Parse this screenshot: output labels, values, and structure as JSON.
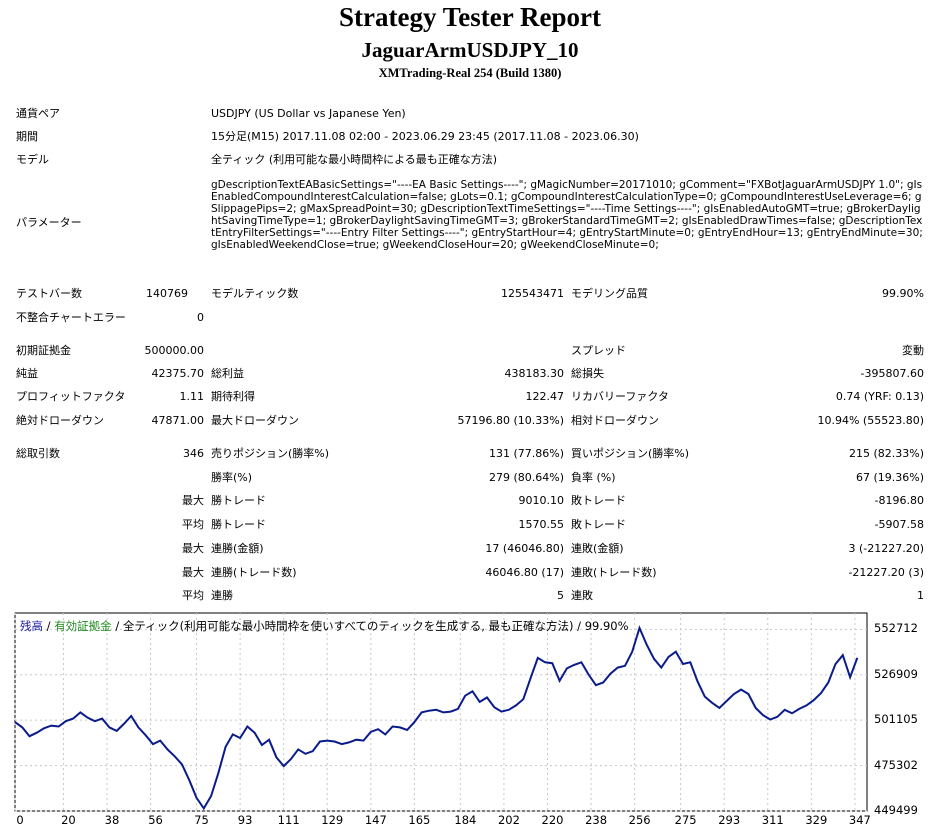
{
  "header": {
    "title": "Strategy Tester Report",
    "ea_name": "JaguarArmUSDJPY_10",
    "server": "XMTrading-Real 254 (Build 1380)"
  },
  "info": {
    "symbol_label": "通貨ペア",
    "symbol_value": "USDJPY (US Dollar vs Japanese Yen)",
    "period_label": "期間",
    "period_value": "15分足(M15) 2017.11.08 02:00 - 2023.06.29 23:45 (2017.11.08 - 2023.06.30)",
    "model_label": "モデル",
    "model_value": "全ティック (利用可能な最小時間枠による最も正確な方法)",
    "params_label": "パラメーター",
    "params_value": "gDescriptionTextEABasicSettings=\"----EA Basic Settings----\"; gMagicNumber=20171010; gComment=\"FXBotJaguarArmUSDJPY 1.0\"; gIsEnabledCompoundInterestCalculation=false; gLots=0.1; gCompoundInterestCalculationType=0; gCompoundInterestUseLeverage=6; gSlippagePips=2; gMaxSpreadPoint=30; gDescriptionTextTimeSettings=\"----Time Settings----\"; gIsEnabledAutoGMT=true; gBrokerDaylightSavingTimeType=1; gBrokerDaylightSavingTimeGMT=3; gBrokerStandardTimeGMT=2; gIsEnabledDrawTimes=false; gDescriptionTextEntryFilterSettings=\"----Entry Filter Settings----\"; gEntryStartHour=4; gEntryStartMinute=0; gEntryEndHour=13; gEntryEndMinute=30; gIsEnabledWeekendClose=true; gWeekendCloseHour=20; gWeekendCloseMinute=0;"
  },
  "stats": {
    "bars_label": "テストバー数",
    "bars_value": "140769",
    "ticks_label": "モデルティック数",
    "ticks_value": "125543471",
    "quality_label": "モデリング品質",
    "quality_value": "99.90%",
    "mismatch_label": "不整合チャートエラー",
    "mismatch_value": "0",
    "deposit_label": "初期証拠金",
    "deposit_value": "500000.00",
    "spread_label": "スプレッド",
    "spread_value": "変動",
    "net_label": "純益",
    "net_value": "42375.70",
    "gross_profit_label": "総利益",
    "gross_profit_value": "438183.30",
    "gross_loss_label": "総損失",
    "gross_loss_value": "-395807.60",
    "pf_label": "プロフィットファクタ",
    "pf_value": "1.11",
    "expected_label": "期待利得",
    "expected_value": "122.47",
    "recovery_label": "リカバリーファクタ",
    "recovery_value": "0.74 (YRF: 0.13)",
    "abs_dd_label": "絶対ドローダウン",
    "abs_dd_value": "47871.00",
    "max_dd_label": "最大ドローダウン",
    "max_dd_value": "57196.80 (10.33%)",
    "rel_dd_label": "相対ドローダウン",
    "rel_dd_value": "10.94% (55523.80)",
    "trades_label": "総取引数",
    "trades_value": "346",
    "short_label": "売りポジション(勝率%)",
    "short_value": "131 (77.86%)",
    "long_label": "買いポジション(勝率%)",
    "long_value": "215 (82.33%)",
    "winrate_label": "勝率(%)",
    "winrate_value": "279 (80.64%)",
    "lossrate_label": "負率 (%)",
    "lossrate_value": "67 (19.36%)",
    "max_prefix": "最大",
    "avg_prefix": "平均",
    "win_trade_label": "勝トレード",
    "loss_trade_label": "敗トレード",
    "max_win_value": "9010.10",
    "max_loss_value": "-8196.80",
    "avg_win_value": "1570.55",
    "avg_loss_value": "-5907.58",
    "consec_win_amount_label": "連勝(金額)",
    "consec_win_amount_value": "17 (46046.80)",
    "consec_loss_amount_label": "連敗(金額)",
    "consec_loss_amount_value": "3 (-21227.20)",
    "consec_win_count_label": "連勝(トレード数)",
    "consec_win_count_value": "46046.80 (17)",
    "consec_loss_count_label": "連敗(トレード数)",
    "consec_loss_count_value": "-21227.20 (3)",
    "consec_win_label": "連勝",
    "consec_win_value": "5",
    "consec_loss_label": "連敗",
    "consec_loss_value": "1"
  },
  "chart_legend": {
    "balance": "残高",
    "sep": " / ",
    "equity": "有効証拠金",
    "rest": " / 全ティック(利用可能な最小時間枠を使いすべてのティックを生成する, 最も正確な方法) / 99.90%"
  },
  "colors": {
    "balance": "#1a1aa0",
    "equity": "#1e8a1e",
    "line": "#0a1c8c",
    "grid": "#c8c8c8"
  },
  "chart_data": {
    "type": "line",
    "xlim": [
      0,
      352
    ],
    "ylim": [
      449499,
      562000
    ],
    "y_ticks": [
      "552712",
      "526909",
      "501105",
      "475302",
      "449499"
    ],
    "x_ticks": [
      "0",
      "20",
      "38",
      "56",
      "75",
      "93",
      "111",
      "129",
      "147",
      "165",
      "184",
      "202",
      "220",
      "238",
      "256",
      "275",
      "293",
      "311",
      "329",
      "347"
    ],
    "series": [
      {
        "x": [
          0,
          3,
          6,
          9,
          12,
          15,
          18,
          21,
          24,
          27,
          30,
          33,
          36,
          39,
          42,
          45,
          48,
          51,
          54,
          57,
          60,
          63,
          66,
          69,
          72,
          75,
          78,
          81,
          84,
          87,
          90,
          93,
          96,
          99,
          102,
          105,
          108,
          111,
          114,
          117,
          120,
          123,
          126,
          129,
          132,
          135,
          138,
          141,
          144,
          147,
          150,
          153,
          156,
          159,
          162,
          165,
          168,
          171,
          174,
          177,
          180,
          183,
          186,
          189,
          192,
          195,
          198,
          201,
          204,
          207,
          210,
          213,
          216,
          219,
          222,
          225,
          228,
          231,
          234,
          237,
          240,
          243,
          246,
          249,
          252,
          255,
          258,
          261,
          264,
          267,
          270,
          273,
          276,
          279,
          282,
          285,
          288,
          291,
          294,
          297,
          300,
          303,
          306,
          309,
          312,
          315,
          318,
          321,
          324,
          327,
          330,
          333,
          336,
          339,
          342,
          345,
          348
        ],
        "values": [
          500000,
          497000,
          492000,
          494000,
          496500,
          498000,
          497500,
          500500,
          502000,
          505500,
          502500,
          500500,
          502000,
          497000,
          495000,
          499000,
          503500,
          497000,
          492500,
          487500,
          489500,
          484500,
          480500,
          476000,
          467000,
          457000,
          451000,
          458000,
          471000,
          486000,
          493000,
          491000,
          497500,
          494000,
          487000,
          490000,
          480000,
          475000,
          479000,
          484500,
          482000,
          483500,
          489000,
          489500,
          489000,
          487500,
          488500,
          490000,
          489500,
          494500,
          496000,
          493000,
          497500,
          497000,
          495500,
          500000,
          505500,
          506500,
          507000,
          505500,
          506000,
          507500,
          515000,
          517500,
          511500,
          514000,
          508500,
          506000,
          507000,
          509500,
          513000,
          525000,
          536500,
          534000,
          533500,
          523500,
          530500,
          532500,
          534000,
          527000,
          521000,
          522500,
          527500,
          531000,
          532000,
          540000,
          553500,
          544000,
          536000,
          531000,
          537000,
          540000,
          533000,
          534000,
          523000,
          514500,
          511000,
          508000,
          512000,
          516000,
          518500,
          516000,
          508000,
          504000,
          501500,
          503000,
          507000,
          505000,
          507500,
          509500,
          512500,
          516500,
          522500,
          533000,
          538000,
          525500,
          536500
        ]
      }
    ]
  }
}
